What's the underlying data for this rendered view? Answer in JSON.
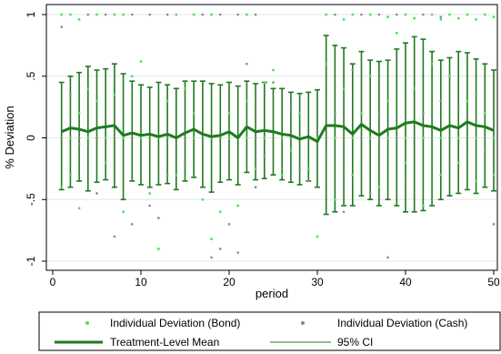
{
  "chart_data": {
    "type": "line",
    "title": "",
    "xlabel": "period",
    "ylabel": "% Deviation",
    "xlim": [
      0,
      50
    ],
    "ylim": [
      -1,
      1
    ],
    "xticks": [
      0,
      10,
      20,
      30,
      40,
      50
    ],
    "xtick_labels": [
      "0",
      "10",
      "20",
      "30",
      "40",
      "50"
    ],
    "yticks": [
      -1,
      -0.5,
      0,
      0.5,
      1
    ],
    "ytick_labels": [
      "-1",
      "-.5",
      "0",
      ".5",
      "1"
    ],
    "grid": "horizontal",
    "legend_position": "bottom",
    "colors": {
      "bond": "#4de24d",
      "cash": "#888888",
      "mean": "#1f7a1f",
      "ci": "#1f7a1f"
    },
    "legend": [
      {
        "label": "Individual Deviation (Bond)",
        "marker": "dot-green"
      },
      {
        "label": "Individual Deviation (Cash)",
        "marker": "dot-gray"
      },
      {
        "label": "Treatment-Level Mean",
        "marker": "thick-line"
      },
      {
        "label": "95% CI",
        "marker": "thin-line"
      }
    ],
    "x": [
      1,
      2,
      3,
      4,
      5,
      6,
      7,
      8,
      9,
      10,
      11,
      12,
      13,
      14,
      15,
      16,
      17,
      18,
      19,
      20,
      21,
      22,
      23,
      24,
      25,
      26,
      27,
      28,
      29,
      30,
      31,
      32,
      33,
      34,
      35,
      36,
      37,
      38,
      39,
      40,
      41,
      42,
      43,
      44,
      45,
      46,
      47,
      48,
      49,
      50
    ],
    "series": [
      {
        "name": "Treatment-Level Mean",
        "values": [
          0.05,
          0.08,
          0.07,
          0.05,
          0.08,
          0.09,
          0.1,
          0.02,
          0.04,
          0.02,
          0.03,
          0.01,
          0.03,
          0.0,
          0.04,
          0.07,
          0.03,
          0.01,
          0.02,
          0.05,
          0.0,
          0.09,
          0.05,
          0.06,
          0.05,
          0.03,
          0.02,
          -0.01,
          0.01,
          -0.03,
          0.1,
          0.1,
          0.09,
          0.03,
          0.11,
          0.06,
          0.02,
          0.07,
          0.08,
          0.12,
          0.13,
          0.1,
          0.09,
          0.06,
          0.1,
          0.08,
          0.13,
          0.1,
          0.09,
          0.06
        ]
      },
      {
        "name": "95% CI lower",
        "values": [
          -0.42,
          -0.4,
          -0.35,
          -0.43,
          -0.36,
          -0.34,
          -0.4,
          -0.5,
          -0.35,
          -0.38,
          -0.4,
          -0.38,
          -0.37,
          -0.42,
          -0.35,
          -0.32,
          -0.4,
          -0.44,
          -0.36,
          -0.34,
          -0.38,
          -0.28,
          -0.34,
          -0.33,
          -0.3,
          -0.34,
          -0.36,
          -0.38,
          -0.35,
          -0.4,
          -0.62,
          -0.6,
          -0.55,
          -0.55,
          -0.47,
          -0.5,
          -0.55,
          -0.5,
          -0.55,
          -0.6,
          -0.6,
          -0.59,
          -0.55,
          -0.5,
          -0.47,
          -0.45,
          -0.42,
          -0.45,
          -0.4,
          -0.43
        ]
      },
      {
        "name": "95% CI upper",
        "values": [
          0.45,
          0.5,
          0.53,
          0.58,
          0.55,
          0.56,
          0.6,
          0.52,
          0.46,
          0.43,
          0.41,
          0.45,
          0.43,
          0.4,
          0.46,
          0.46,
          0.46,
          0.44,
          0.43,
          0.45,
          0.42,
          0.46,
          0.44,
          0.45,
          0.4,
          0.4,
          0.37,
          0.36,
          0.37,
          0.39,
          0.83,
          0.75,
          0.73,
          0.6,
          0.7,
          0.63,
          0.62,
          0.63,
          0.72,
          0.77,
          0.82,
          0.8,
          0.7,
          0.63,
          0.65,
          0.7,
          0.69,
          0.64,
          0.6,
          0.55
        ]
      },
      {
        "name": "Individual Deviation (Bond)",
        "points": [
          [
            1,
            1
          ],
          [
            2,
            1
          ],
          [
            3,
            0.96
          ],
          [
            5,
            1
          ],
          [
            7,
            1
          ],
          [
            8,
            1
          ],
          [
            14,
            1
          ],
          [
            16,
            1
          ],
          [
            18,
            1
          ],
          [
            22,
            1
          ],
          [
            31,
            1
          ],
          [
            33,
            0.96
          ],
          [
            34,
            1
          ],
          [
            36,
            1
          ],
          [
            38,
            0.98
          ],
          [
            40,
            1
          ],
          [
            41,
            0.97
          ],
          [
            43,
            1
          ],
          [
            44,
            0.96
          ],
          [
            45,
            1
          ],
          [
            46,
            0.97
          ],
          [
            47,
            1
          ],
          [
            48,
            0.96
          ],
          [
            49,
            1
          ],
          [
            50,
            0.98
          ],
          [
            1,
            -0.4
          ],
          [
            2,
            -0.3
          ],
          [
            3,
            0.2
          ],
          [
            3,
            -0.57
          ],
          [
            4,
            0.4
          ],
          [
            5,
            0.3
          ],
          [
            6,
            -0.2
          ],
          [
            7,
            0.35
          ],
          [
            8,
            -0.6
          ],
          [
            9,
            0.5
          ],
          [
            10,
            0.62
          ],
          [
            11,
            -0.45
          ],
          [
            12,
            -0.9
          ],
          [
            13,
            0.3
          ],
          [
            14,
            -0.3
          ],
          [
            15,
            0.4
          ],
          [
            16,
            0.2
          ],
          [
            17,
            -0.5
          ],
          [
            18,
            -0.82
          ],
          [
            19,
            -0.6
          ],
          [
            20,
            0.2
          ],
          [
            21,
            -0.55
          ],
          [
            22,
            0.3
          ],
          [
            23,
            -0.25
          ],
          [
            24,
            0.45
          ],
          [
            25,
            0.55
          ],
          [
            26,
            -0.3
          ],
          [
            27,
            -0.1
          ],
          [
            28,
            0.2
          ],
          [
            29,
            -0.25
          ],
          [
            30,
            -0.8
          ],
          [
            31,
            0.6
          ],
          [
            32,
            -0.5
          ],
          [
            33,
            0.4
          ],
          [
            34,
            -0.3
          ],
          [
            35,
            0.2
          ],
          [
            36,
            0.5
          ],
          [
            37,
            -0.4
          ],
          [
            38,
            0.3
          ],
          [
            39,
            0.85
          ],
          [
            40,
            -0.2
          ],
          [
            41,
            0.4
          ],
          [
            42,
            -0.55
          ],
          [
            43,
            0.6
          ],
          [
            44,
            -0.3
          ],
          [
            45,
            0.5
          ],
          [
            46,
            -0.2
          ],
          [
            47,
            0.3
          ],
          [
            48,
            -0.35
          ],
          [
            49,
            0.2
          ],
          [
            50,
            -0.3
          ]
        ]
      },
      {
        "name": "Individual Deviation (Cash)",
        "points": [
          [
            4,
            1
          ],
          [
            6,
            1
          ],
          [
            9,
            1
          ],
          [
            11,
            1
          ],
          [
            13,
            1
          ],
          [
            17,
            1
          ],
          [
            19,
            1
          ],
          [
            21,
            1
          ],
          [
            23,
            1
          ],
          [
            32,
            1
          ],
          [
            35,
            1
          ],
          [
            37,
            1
          ],
          [
            39,
            1
          ],
          [
            42,
            1
          ],
          [
            44,
            0.98
          ],
          [
            1,
            0.9
          ],
          [
            2,
            0.35
          ],
          [
            3,
            -0.05
          ],
          [
            5,
            -0.45
          ],
          [
            7,
            -0.8
          ],
          [
            9,
            -0.7
          ],
          [
            11,
            -0.55
          ],
          [
            12,
            -0.65
          ],
          [
            13,
            -0.3
          ],
          [
            15,
            -0.2
          ],
          [
            18,
            -0.97
          ],
          [
            19,
            -0.9
          ],
          [
            20,
            -0.7
          ],
          [
            21,
            -0.93
          ],
          [
            22,
            0.6
          ],
          [
            23,
            -0.4
          ],
          [
            24,
            -0.15
          ],
          [
            25,
            0.45
          ],
          [
            27,
            0.25
          ],
          [
            28,
            -0.25
          ],
          [
            29,
            -0.35
          ],
          [
            30,
            0.05
          ],
          [
            31,
            -0.15
          ],
          [
            32,
            0.2
          ],
          [
            33,
            -0.6
          ],
          [
            34,
            0.55
          ],
          [
            36,
            -0.45
          ],
          [
            37,
            0.2
          ],
          [
            38,
            -0.97
          ],
          [
            40,
            -0.35
          ],
          [
            41,
            -0.45
          ],
          [
            42,
            0.2
          ],
          [
            43,
            -0.5
          ],
          [
            44,
            0.3
          ],
          [
            45,
            -0.2
          ],
          [
            46,
            0.25
          ],
          [
            47,
            -0.15
          ],
          [
            48,
            0.35
          ],
          [
            49,
            -0.1
          ],
          [
            50,
            -0.7
          ]
        ]
      }
    ]
  }
}
